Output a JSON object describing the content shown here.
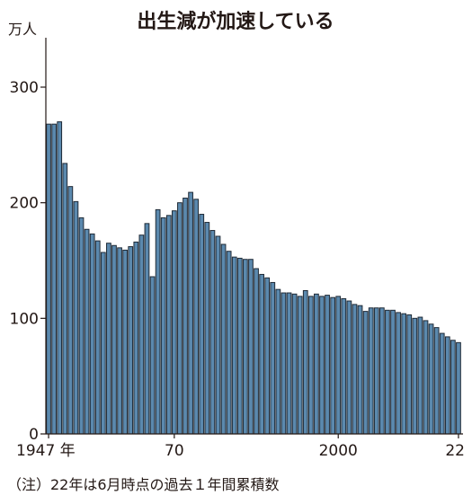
{
  "chart_data": {
    "type": "bar",
    "title": "出生減が加速している",
    "ylabel": "万人",
    "ylim": [
      0,
      335
    ],
    "yticks": [
      0,
      100,
      200,
      300
    ],
    "xticks": [
      {
        "year": 1947,
        "label": "1947 年"
      },
      {
        "year": 1970,
        "label": "70"
      },
      {
        "year": 2000,
        "label": "2000"
      },
      {
        "year": 2022,
        "label": "22"
      }
    ],
    "note": "（注）22年は6月時点の過去１年間累積数",
    "bar_color": "#5b89ae",
    "years": [
      1947,
      1948,
      1949,
      1950,
      1951,
      1952,
      1953,
      1954,
      1955,
      1956,
      1957,
      1958,
      1959,
      1960,
      1961,
      1962,
      1963,
      1964,
      1965,
      1966,
      1967,
      1968,
      1969,
      1970,
      1971,
      1972,
      1973,
      1974,
      1975,
      1976,
      1977,
      1978,
      1979,
      1980,
      1981,
      1982,
      1983,
      1984,
      1985,
      1986,
      1987,
      1988,
      1989,
      1990,
      1991,
      1992,
      1993,
      1994,
      1995,
      1996,
      1997,
      1998,
      1999,
      2000,
      2001,
      2002,
      2003,
      2004,
      2005,
      2006,
      2007,
      2008,
      2009,
      2010,
      2011,
      2012,
      2013,
      2014,
      2015,
      2016,
      2017,
      2018,
      2019,
      2020,
      2021,
      2022
    ],
    "values": [
      268,
      268,
      270,
      234,
      214,
      201,
      187,
      177,
      173,
      167,
      157,
      165,
      163,
      161,
      159,
      162,
      166,
      172,
      182,
      136,
      194,
      187,
      189,
      193,
      200,
      204,
      209,
      203,
      190,
      183,
      176,
      171,
      164,
      158,
      153,
      152,
      151,
      151,
      143,
      138,
      135,
      131,
      125,
      122,
      122,
      121,
      119,
      124,
      119,
      121,
      119,
      120,
      118,
      119,
      117,
      115,
      112,
      111,
      106,
      109,
      109,
      109,
      107,
      107,
      105,
      104,
      103,
      100,
      101,
      98,
      95,
      92,
      87,
      84,
      81,
      79
    ]
  }
}
